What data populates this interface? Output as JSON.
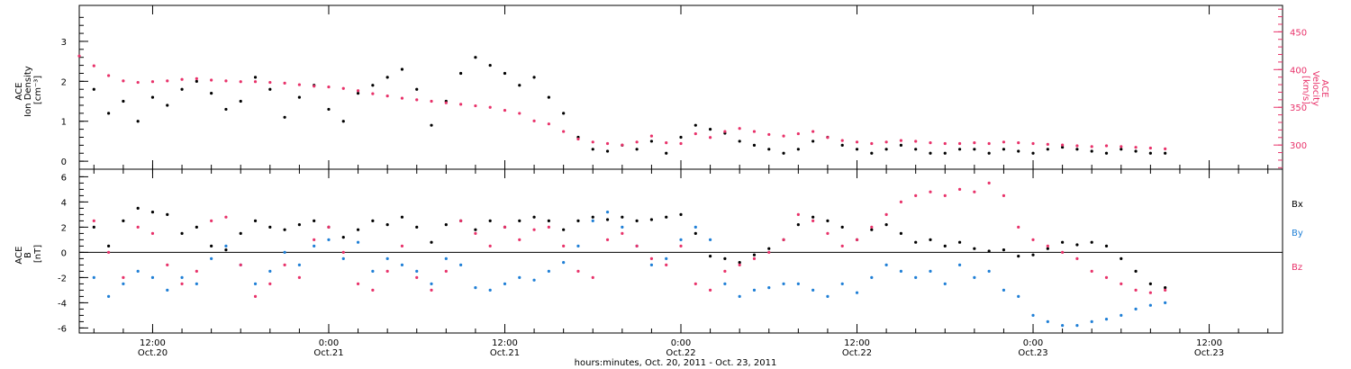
{
  "colors": {
    "density": "#000000",
    "velocity": "#e8326a",
    "bx": "#000000",
    "by": "#1f7fd6",
    "bz": "#e8326a",
    "axis": "#000000"
  },
  "x_axis": {
    "ticks": [
      {
        "t": 12,
        "time": "12:00",
        "date": "Oct.20"
      },
      {
        "t": 24,
        "time": "0:00",
        "date": "Oct.21"
      },
      {
        "t": 36,
        "time": "12:00",
        "date": "Oct.21"
      },
      {
        "t": 48,
        "time": "0:00",
        "date": "Oct.22"
      },
      {
        "t": 60,
        "time": "12:00",
        "date": "Oct.22"
      },
      {
        "t": 72,
        "time": "0:00",
        "date": "Oct.23"
      },
      {
        "t": 84,
        "time": "12:00",
        "date": "Oct.23"
      }
    ],
    "label": "hours:minutes, Oct. 20, 2011 - Oct. 23, 2011"
  },
  "chart_data": [
    {
      "type": "scatter",
      "title": "",
      "xlabel": "hours:minutes, Oct. 20, 2011 - Oct. 23, 2011",
      "xlim_hours_since_oct20_0000": [
        7,
        89
      ],
      "ylabel_left": "ACE Ion Density [cm⁻³]",
      "ylabel_left_lines": [
        "ACE",
        "Ion Density",
        "[cm⁻³]"
      ],
      "ylim_left": [
        -0.2,
        3.9
      ],
      "yticks_left": [
        0,
        1,
        2,
        3
      ],
      "ylabel_right": "ACE Velocity [km/s]",
      "ylabel_right_lines": [
        "ACE",
        "Velocity",
        "[km/s]"
      ],
      "ylim_right": [
        268,
        485
      ],
      "yticks_right": [
        300,
        350,
        400,
        450
      ],
      "series": [
        {
          "key": "density",
          "axis": "left",
          "x": [
            8,
            9,
            10,
            11,
            12,
            13,
            14,
            15,
            16,
            17,
            18,
            19,
            20,
            21,
            22,
            23,
            24,
            25,
            26,
            27,
            28,
            29,
            30,
            31,
            32,
            33,
            34,
            35,
            36,
            37,
            38,
            39,
            40,
            41,
            42,
            43,
            44,
            45,
            46,
            47,
            48,
            49,
            50,
            51,
            52,
            53,
            54,
            55,
            56,
            57,
            58,
            59,
            60,
            61,
            62,
            63,
            64,
            65,
            66,
            67,
            68,
            69,
            70,
            71,
            72,
            73,
            74,
            75,
            76,
            77,
            78,
            79,
            80,
            81
          ],
          "values": [
            1.8,
            1.2,
            1.5,
            1.0,
            1.6,
            1.4,
            1.8,
            2.0,
            1.7,
            1.3,
            1.5,
            2.1,
            1.8,
            1.1,
            1.6,
            1.9,
            1.3,
            1.0,
            1.7,
            1.9,
            2.1,
            2.3,
            1.8,
            0.9,
            1.5,
            2.2,
            2.6,
            2.4,
            2.2,
            1.9,
            2.1,
            1.6,
            1.2,
            0.6,
            0.3,
            0.25,
            0.4,
            0.3,
            0.5,
            0.2,
            0.6,
            0.9,
            0.8,
            0.7,
            0.5,
            0.4,
            0.3,
            0.2,
            0.3,
            0.5,
            0.6,
            0.4,
            0.3,
            0.2,
            0.3,
            0.4,
            0.3,
            0.2,
            0.2,
            0.3,
            0.3,
            0.2,
            0.3,
            0.25,
            0.2,
            0.3,
            0.35,
            0.3,
            0.25,
            0.2,
            0.3,
            0.25,
            0.2,
            0.2
          ]
        },
        {
          "key": "velocity",
          "axis": "right",
          "x": [
            7,
            8,
            9,
            10,
            11,
            12,
            13,
            14,
            15,
            16,
            17,
            18,
            19,
            20,
            21,
            22,
            23,
            24,
            25,
            26,
            27,
            28,
            29,
            30,
            31,
            32,
            33,
            34,
            35,
            36,
            37,
            38,
            39,
            40,
            41,
            42,
            43,
            44,
            45,
            46,
            47,
            48,
            49,
            50,
            51,
            52,
            53,
            54,
            55,
            56,
            57,
            58,
            59,
            60,
            61,
            62,
            63,
            64,
            65,
            66,
            67,
            68,
            69,
            70,
            71,
            72,
            73,
            74,
            75,
            76,
            77,
            78,
            79,
            80,
            81
          ],
          "values": [
            418,
            405,
            392,
            385,
            383,
            384,
            385,
            387,
            388,
            386,
            385,
            384,
            384,
            383,
            382,
            380,
            378,
            377,
            375,
            372,
            368,
            365,
            362,
            360,
            358,
            356,
            354,
            352,
            350,
            346,
            342,
            332,
            328,
            318,
            308,
            304,
            302,
            300,
            304,
            312,
            303,
            302,
            315,
            310,
            318,
            322,
            318,
            314,
            312,
            315,
            318,
            310,
            306,
            304,
            302,
            304,
            306,
            305,
            303,
            302,
            302,
            303,
            302,
            304,
            303,
            302,
            301,
            300,
            299,
            298,
            299,
            298,
            297,
            296,
            295
          ]
        }
      ]
    },
    {
      "type": "scatter",
      "title": "",
      "xlabel": "hours:minutes, Oct. 20, 2011 - Oct. 23, 2011",
      "xlim_hours_since_oct20_0000": [
        7,
        89
      ],
      "ylabel": "ACE B [nT]",
      "ylabel_lines": [
        "ACE",
        "B",
        "[nT]"
      ],
      "ylim": [
        -6.4,
        6.6
      ],
      "yticks": [
        -6,
        -4,
        -2,
        0,
        2,
        4,
        6
      ],
      "legend": [
        "Bx",
        "By",
        "Bz"
      ],
      "series": [
        {
          "key": "bx",
          "name": "Bx",
          "x": [
            8,
            9,
            10,
            11,
            12,
            13,
            14,
            15,
            16,
            17,
            18,
            19,
            20,
            21,
            22,
            23,
            24,
            25,
            26,
            27,
            28,
            29,
            30,
            31,
            32,
            33,
            34,
            35,
            36,
            37,
            38,
            39,
            40,
            41,
            42,
            43,
            44,
            45,
            46,
            47,
            48,
            49,
            50,
            51,
            52,
            53,
            54,
            55,
            56,
            57,
            58,
            59,
            60,
            61,
            62,
            63,
            64,
            65,
            66,
            67,
            68,
            69,
            70,
            71,
            72,
            73,
            74,
            75,
            76,
            77,
            78,
            79,
            80,
            81
          ],
          "values": [
            2.0,
            0.5,
            2.5,
            3.5,
            3.2,
            3.0,
            1.5,
            2.0,
            0.5,
            0.2,
            1.5,
            2.5,
            2.0,
            1.8,
            2.2,
            2.5,
            2.0,
            1.2,
            1.8,
            2.5,
            2.2,
            2.8,
            2.0,
            0.8,
            2.2,
            2.5,
            1.8,
            2.5,
            2.0,
            2.5,
            2.8,
            2.5,
            1.8,
            2.5,
            2.8,
            2.6,
            2.8,
            2.5,
            2.6,
            2.8,
            3.0,
            1.5,
            -0.3,
            -0.5,
            -0.8,
            -0.2,
            0.3,
            1.0,
            2.2,
            2.8,
            2.5,
            2.0,
            1.0,
            1.8,
            2.2,
            1.5,
            0.8,
            1.0,
            0.5,
            0.8,
            0.3,
            0.1,
            0.2,
            -0.3,
            -0.2,
            0.3,
            0.8,
            0.6,
            0.8,
            0.5,
            -0.5,
            -1.5,
            -2.5,
            -2.8
          ]
        },
        {
          "key": "by",
          "name": "By",
          "x": [
            8,
            9,
            10,
            11,
            12,
            13,
            14,
            15,
            16,
            17,
            18,
            19,
            20,
            21,
            22,
            23,
            24,
            25,
            26,
            27,
            28,
            29,
            30,
            31,
            32,
            33,
            34,
            35,
            36,
            37,
            38,
            39,
            40,
            41,
            42,
            43,
            44,
            45,
            46,
            47,
            48,
            49,
            50,
            51,
            52,
            53,
            54,
            55,
            56,
            57,
            58,
            59,
            60,
            61,
            62,
            63,
            64,
            65,
            66,
            67,
            68,
            69,
            70,
            71,
            72,
            73,
            74,
            75,
            76,
            77,
            78,
            79,
            80,
            81
          ],
          "values": [
            -2.0,
            -3.5,
            -2.5,
            -1.5,
            -2.0,
            -3.0,
            -2.0,
            -2.5,
            -0.5,
            0.5,
            -1.0,
            -2.5,
            -1.5,
            0.0,
            -1.0,
            0.5,
            1.0,
            -0.5,
            0.8,
            -1.5,
            -0.5,
            -1.0,
            -1.5,
            -2.5,
            -0.5,
            -1.0,
            -2.8,
            -3.0,
            -2.5,
            -2.0,
            -2.2,
            -1.5,
            -0.8,
            0.5,
            2.5,
            3.2,
            2.0,
            0.5,
            -1.0,
            -0.5,
            1.0,
            2.0,
            1.0,
            -2.5,
            -3.5,
            -3.0,
            -2.8,
            -2.5,
            -2.5,
            -3.0,
            -3.5,
            -2.5,
            -3.2,
            -2.0,
            -1.0,
            -1.5,
            -2.0,
            -1.5,
            -2.5,
            -1.0,
            -2.0,
            -1.5,
            -3.0,
            -3.5,
            -5.0,
            -5.5,
            -5.8,
            -5.8,
            -5.5,
            -5.3,
            -5.0,
            -4.5,
            -4.2,
            -4.0
          ]
        },
        {
          "key": "bz",
          "name": "Bz",
          "x": [
            8,
            9,
            10,
            11,
            12,
            13,
            14,
            15,
            16,
            17,
            18,
            19,
            20,
            21,
            22,
            23,
            24,
            25,
            26,
            27,
            28,
            29,
            30,
            31,
            32,
            33,
            34,
            35,
            36,
            37,
            38,
            39,
            40,
            41,
            42,
            43,
            44,
            45,
            46,
            47,
            48,
            49,
            50,
            51,
            52,
            53,
            54,
            55,
            56,
            57,
            58,
            59,
            60,
            61,
            62,
            63,
            64,
            65,
            66,
            67,
            68,
            69,
            70,
            71,
            72,
            73,
            74,
            75,
            76,
            77,
            78,
            79,
            80,
            81
          ],
          "values": [
            2.5,
            0.0,
            -2.0,
            2.0,
            1.5,
            -1.0,
            -2.5,
            -1.5,
            2.5,
            2.8,
            -1.0,
            -3.5,
            -2.5,
            -1.0,
            -2.0,
            1.0,
            2.0,
            0.0,
            -2.5,
            -3.0,
            -1.5,
            0.5,
            -2.0,
            -3.0,
            -1.5,
            2.5,
            1.5,
            0.5,
            2.0,
            1.0,
            1.8,
            2.0,
            0.5,
            -1.5,
            -2.0,
            1.0,
            1.5,
            0.5,
            -0.5,
            -1.0,
            0.5,
            -2.5,
            -3.0,
            -1.5,
            -1.0,
            -0.5,
            0.0,
            1.0,
            3.0,
            2.5,
            1.5,
            0.5,
            1.0,
            2.0,
            3.0,
            4.0,
            4.5,
            4.8,
            4.5,
            5.0,
            4.8,
            5.5,
            4.5,
            2.0,
            1.0,
            0.5,
            0.0,
            -0.5,
            -1.5,
            -2.0,
            -2.5,
            -3.0,
            -3.2,
            -3.0
          ]
        }
      ]
    }
  ]
}
